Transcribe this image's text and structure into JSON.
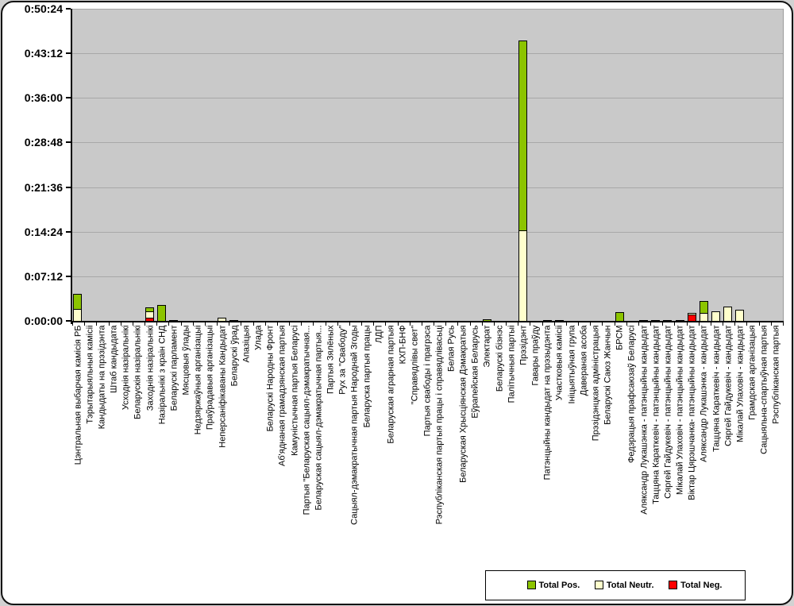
{
  "chart_data": {
    "type": "bar",
    "stacked": true,
    "title": "",
    "xlabel": "",
    "ylabel": "",
    "grid": true,
    "legend_position": "bottom-right",
    "y_axis": {
      "unit": "h:mm:ss",
      "min_seconds": 0,
      "max_seconds": 3024,
      "tick_interval_seconds": 432,
      "tick_labels_top_to_bottom": [
        "0:50:24",
        "0:43:12",
        "0:36:00",
        "0:28:48",
        "0:21:36",
        "0:14:24",
        "0:07:12",
        "0:00:00"
      ]
    },
    "legend": [
      {
        "label": "Total Pos.",
        "color": "#8cc400"
      },
      {
        "label": "Total Neutr.",
        "color": "#ffffcc"
      },
      {
        "label": "Total Neg.",
        "color": "#ff0000"
      }
    ],
    "colors": {
      "positive": "#8cc400",
      "neutral": "#ffffcc",
      "negative": "#ff0000",
      "plot_background": "#c9c9c9",
      "chart_background": "#ffffff",
      "gridline": "#a8a8a8"
    },
    "categories": [
      "Цэнтральная выбарчая камісія РБ",
      "Тэрытарыяльныя камісіі",
      "Кандыдаты на прэзідэнта",
      "Штаб кандыдата",
      "Усходнія назіральнікі",
      "Беларускія назіральнікі",
      "Заходнія назіральнікі",
      "Назіральнікі з краін СНД",
      "Беларускі парламент",
      "Мясцовыя ўлады",
      "Недзяржаўныя арганізацыі",
      "Праўрадавыя арганізацыі",
      "Неперсаніфікаваны Кандыдат",
      "Беларускі ўрад",
      "Апазіцыя",
      "Улада",
      "Беларускі Народны Фронт",
      "Аб'яднаная грамадзянская партыя",
      "Камуністычная партыя Беларусі",
      "Партыя \"Беларуская сацыял-дэмакратычная...",
      "Беларуская сацыял-дэмакратычная партыя...",
      "Партыя Зялёных",
      "Рух за \"Свабоду\"",
      "Сацыял-дэмакратычная партыя Народнай Згоды",
      "Беларуска партыя працы",
      "ЛДП",
      "Беларуская аграрная партыя",
      "КХП-БНФ",
      "\"Справядлівы свет\"",
      "Партыя свабоды і прагрэса",
      "Рэспубліканская партыя працы і справядлівасьці",
      "Белая Русь",
      "Беларуская Хрысціянская Дэмакратыя",
      "Еўрапейская Беларусь",
      "Электарат",
      "Беларускі бізнэс",
      "Палітычныя партыі",
      "Прэзідэнт",
      "Гавары праўду",
      "Патэнцыйны кандыдат на прэзыдэнта",
      "Участковыя камісіі",
      "Ініцыятыўная група",
      "Давераная асоба",
      "Прэзідэнцкая адміністрацыя",
      "Беларускі Саюз Жанчын",
      "БРСМ",
      "Федэрацыя прафсаюзаў Беларусі",
      "Аляксандр Лукашэнка - патэнцыйны кандыдат",
      "Таццяна Караткевіч - патэнцыйны кандыдат",
      "Сяргей Гайдукевіч - патэнцыйны кандыдат",
      "Мікалай Улаховіч - патэнцыйны кандыдат",
      "Віктар Цярэшчанка- патэнцыйны кандыдат",
      "Аляксандр Лукашэнка - кандыдат",
      "Таццяна Караткевіч - кандыдат",
      "Сяргей Гайдукевіч - кандыдат",
      "Мікалай Улаховіч - кандыдат",
      "Грамдская арганізацыя",
      "Сацыяльна-спартыўная партыя",
      "Рэспубліканская партыя"
    ],
    "series_stack_order_bottom_to_top": [
      "Total Neg.",
      "Total Neutr.",
      "Total Pos."
    ],
    "series": [
      {
        "name": "Total Neg.",
        "color": "#ff0000",
        "values_seconds": [
          0,
          0,
          0,
          0,
          0,
          0,
          40,
          0,
          0,
          0,
          0,
          0,
          0,
          0,
          0,
          0,
          0,
          0,
          0,
          0,
          0,
          0,
          0,
          0,
          0,
          0,
          0,
          0,
          0,
          0,
          0,
          0,
          0,
          0,
          0,
          0,
          0,
          0,
          0,
          0,
          0,
          0,
          0,
          0,
          0,
          0,
          0,
          0,
          0,
          0,
          0,
          70,
          0,
          0,
          0,
          0,
          0,
          0,
          0
        ]
      },
      {
        "name": "Total Neutr.",
        "color": "#ffffcc",
        "values_seconds": [
          125,
          0,
          0,
          0,
          0,
          0,
          75,
          0,
          0,
          0,
          0,
          0,
          35,
          15,
          0,
          0,
          0,
          0,
          0,
          0,
          0,
          0,
          0,
          0,
          0,
          0,
          0,
          0,
          0,
          0,
          0,
          0,
          0,
          0,
          0,
          0,
          0,
          885,
          0,
          10,
          10,
          0,
          0,
          0,
          0,
          0,
          0,
          10,
          10,
          10,
          10,
          25,
          90,
          100,
          150,
          115,
          0,
          0,
          0
        ]
      },
      {
        "name": "Total Pos.",
        "color": "#8cc400",
        "values_seconds": [
          155,
          0,
          0,
          0,
          0,
          0,
          45,
          160,
          15,
          0,
          0,
          0,
          0,
          0,
          0,
          0,
          0,
          0,
          0,
          0,
          0,
          0,
          0,
          0,
          0,
          0,
          0,
          0,
          0,
          0,
          0,
          0,
          0,
          0,
          25,
          0,
          0,
          1850,
          0,
          0,
          0,
          0,
          0,
          0,
          0,
          95,
          0,
          0,
          0,
          0,
          0,
          0,
          120,
          0,
          0,
          0,
          0,
          0,
          0
        ]
      }
    ]
  }
}
